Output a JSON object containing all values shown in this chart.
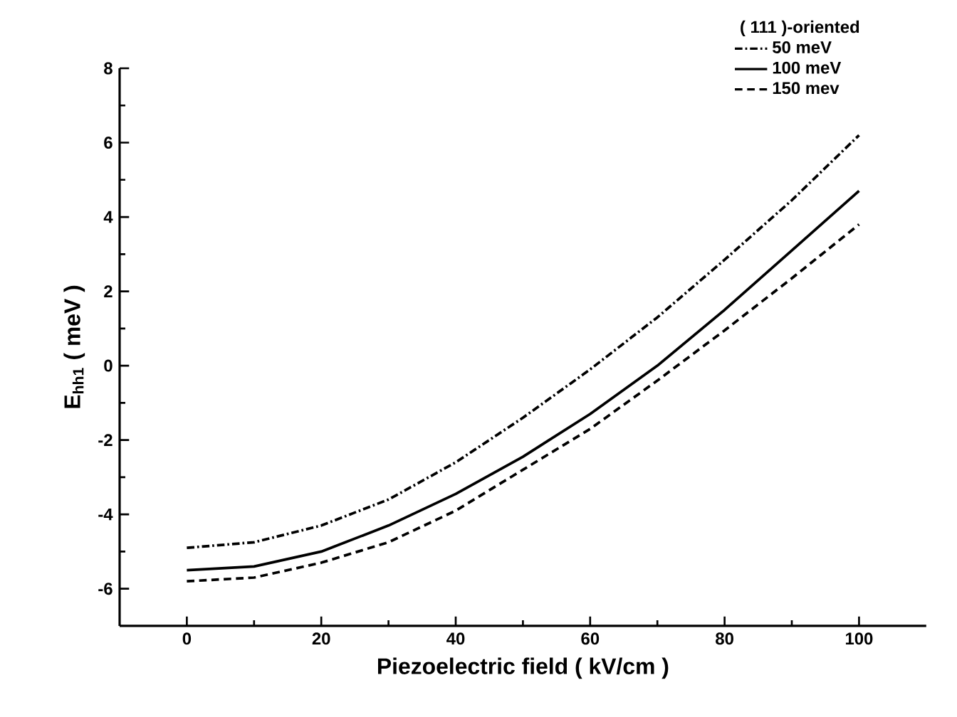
{
  "chart_data": {
    "type": "line",
    "xlabel": "Piezoelectric field ( kV/cm )",
    "ylabel": "E$_{hh1}$  ( meV )",
    "legend_title": "( 111 )-oriented",
    "x": [
      0,
      10,
      20,
      30,
      40,
      50,
      60,
      70,
      80,
      90,
      100
    ],
    "series": [
      {
        "name": "50 meV",
        "color": "#000000",
        "line_style": "dashdot",
        "values": [
          -4.9,
          -4.75,
          -4.3,
          -3.6,
          -2.6,
          -1.4,
          -0.1,
          1.3,
          2.85,
          4.45,
          6.2
        ]
      },
      {
        "name": "100 meV",
        "color": "#000000",
        "line_style": "solid",
        "values": [
          -5.5,
          -5.4,
          -5.0,
          -4.3,
          -3.45,
          -2.45,
          -1.3,
          0.0,
          1.5,
          3.1,
          4.7
        ]
      },
      {
        "name": "150 mev",
        "color": "#000000",
        "line_style": "dashed",
        "values": [
          -5.8,
          -5.7,
          -5.3,
          -4.75,
          -3.9,
          -2.8,
          -1.7,
          -0.4,
          0.95,
          2.35,
          3.8
        ]
      }
    ],
    "xlim": [
      -10,
      110
    ],
    "ylim": [
      -7,
      8
    ],
    "xticks": [
      0,
      20,
      40,
      60,
      80,
      100
    ],
    "yticks": [
      -6,
      -4,
      -2,
      0,
      2,
      4,
      6,
      8
    ],
    "grid": false,
    "legend": "top right",
    "marker": "none"
  }
}
